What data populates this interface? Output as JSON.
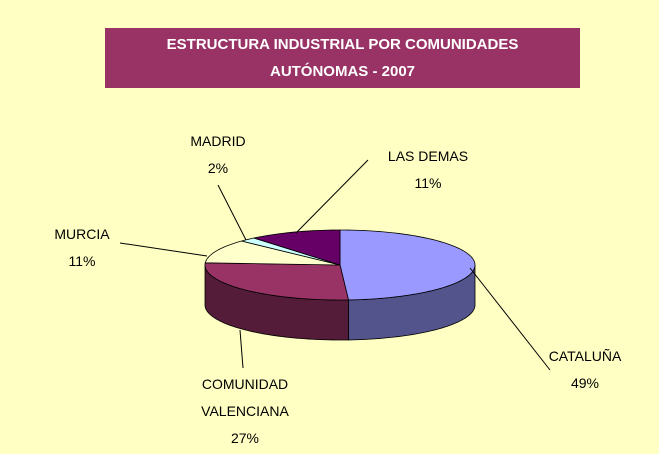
{
  "chart_data": {
    "type": "pie3d",
    "title": "ESTRUCTURA INDUSTRIAL POR COMUNIDADES AUTÓNOMAS - 2007",
    "categories": [
      "CATALUÑA",
      "COMUNIDAD VALENCIANA",
      "MURCIA",
      "MADRID",
      "LAS DEMAS"
    ],
    "values": [
      49,
      27,
      11,
      2,
      11
    ],
    "value_labels": [
      "49%",
      "27%",
      "11%",
      "2%",
      "11%"
    ],
    "colors": [
      "#9999ff",
      "#993366",
      "#ffffcc",
      "#ccffff",
      "#660066"
    ]
  }
}
